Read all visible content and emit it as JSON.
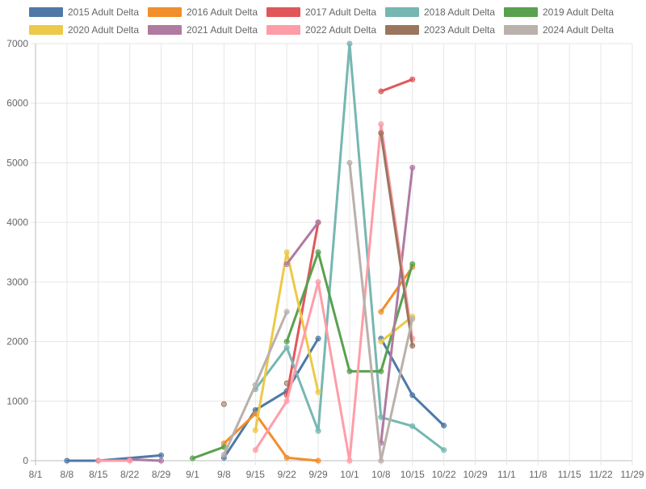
{
  "chart_data": {
    "type": "line",
    "title": "",
    "xlabel": "",
    "ylabel": "",
    "x_ticks": [
      "8/1",
      "8/8",
      "8/15",
      "8/22",
      "8/29",
      "9/1",
      "9/8",
      "9/15",
      "9/22",
      "9/29",
      "10/1",
      "10/8",
      "10/15",
      "10/22",
      "10/29",
      "11/1",
      "11/8",
      "11/15",
      "11/22",
      "11/29"
    ],
    "ylim": [
      0,
      7000
    ],
    "y_ticks": [
      0,
      1000,
      2000,
      3000,
      4000,
      5000,
      6000,
      7000
    ],
    "grid": true,
    "legend_position": "top",
    "series": [
      {
        "name": "2015 Adult Delta",
        "color": "#4e79a7",
        "points": [
          [
            "8/8",
            0
          ],
          [
            "8/15",
            0
          ],
          [
            "8/29",
            90
          ],
          null,
          [
            "9/8",
            50
          ],
          [
            "9/15",
            850
          ],
          [
            "9/22",
            1170
          ],
          [
            "9/29",
            2050
          ],
          null,
          [
            "10/8",
            2050
          ],
          [
            "10/15",
            1100
          ],
          [
            "10/22",
            590
          ]
        ]
      },
      {
        "name": "2016 Adult Delta",
        "color": "#f28e2b",
        "points": [
          [
            "9/8",
            290
          ],
          [
            "9/15",
            790
          ],
          [
            "9/22",
            50
          ],
          [
            "9/29",
            0
          ],
          null,
          [
            "10/8",
            2500
          ],
          [
            "10/15",
            3250
          ]
        ]
      },
      {
        "name": "2017 Adult Delta",
        "color": "#e15759",
        "points": [
          [
            "9/22",
            1100
          ],
          [
            "9/29",
            4000
          ],
          null,
          [
            "10/8",
            6200
          ],
          [
            "10/15",
            6400
          ]
        ]
      },
      {
        "name": "2018 Adult Delta",
        "color": "#76b7b2",
        "points": [
          [
            "9/15",
            1200
          ],
          [
            "9/22",
            1900
          ],
          [
            "9/29",
            500
          ],
          [
            "10/1",
            7000
          ],
          [
            "10/8",
            730
          ],
          [
            "10/15",
            580
          ],
          [
            "10/22",
            180
          ]
        ]
      },
      {
        "name": "2019 Adult Delta",
        "color": "#59a14f",
        "points": [
          [
            "9/1",
            40
          ],
          [
            "9/8",
            230
          ],
          null,
          [
            "9/22",
            2000
          ],
          [
            "9/29",
            3500
          ],
          [
            "10/1",
            1500
          ],
          [
            "10/8",
            1500
          ],
          [
            "10/15",
            3300
          ]
        ]
      },
      {
        "name": "2020 Adult Delta",
        "color": "#edc948",
        "points": [
          [
            "9/15",
            510
          ],
          [
            "9/22",
            3500
          ],
          [
            "9/29",
            1150
          ],
          null,
          [
            "10/8",
            2000
          ],
          [
            "10/15",
            2420
          ]
        ]
      },
      {
        "name": "2021 Adult Delta",
        "color": "#b07aa1",
        "points": [
          [
            "8/22",
            20
          ],
          [
            "8/29",
            0
          ],
          null,
          [
            "9/22",
            3300
          ],
          [
            "9/29",
            4000
          ],
          null,
          [
            "10/8",
            300
          ],
          [
            "10/15",
            4920
          ]
        ]
      },
      {
        "name": "2022 Adult Delta",
        "color": "#ff9da7",
        "points": [
          [
            "8/15",
            0
          ],
          [
            "8/22",
            0
          ],
          null,
          [
            "9/15",
            180
          ],
          [
            "9/22",
            1000
          ],
          [
            "9/29",
            3000
          ],
          [
            "10/1",
            0
          ],
          [
            "10/8",
            5650
          ],
          [
            "10/15",
            2050
          ]
        ]
      },
      {
        "name": "2023 Adult Delta",
        "color": "#9c755f",
        "points": [
          [
            "9/8",
            950
          ],
          null,
          [
            "9/22",
            1300
          ],
          null,
          [
            "10/8",
            5500
          ],
          [
            "10/15",
            1930
          ]
        ]
      },
      {
        "name": "2024 Adult Delta",
        "color": "#bab0ac",
        "points": [
          [
            "9/8",
            100
          ],
          [
            "9/15",
            1270
          ],
          [
            "9/22",
            2500
          ],
          null,
          [
            "10/1",
            5000
          ],
          [
            "10/8",
            0
          ],
          [
            "10/15",
            2380
          ]
        ]
      }
    ]
  }
}
